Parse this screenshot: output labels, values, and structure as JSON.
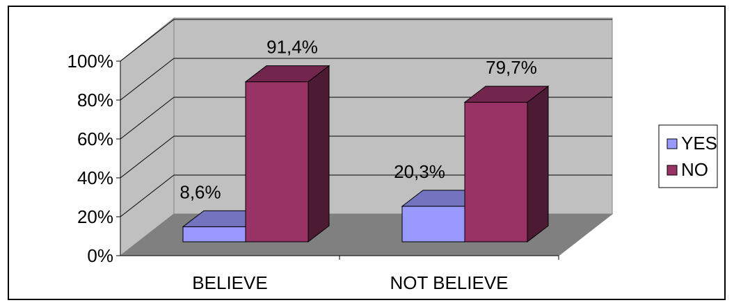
{
  "chart_data": {
    "type": "bar",
    "categories": [
      "BELIEVE",
      "NOT BELIEVE"
    ],
    "series": [
      {
        "name": "YES",
        "values": [
          8.6,
          20.3
        ],
        "labels": [
          "8,6%",
          "20,3%"
        ],
        "color": "#9999ff"
      },
      {
        "name": "NO",
        "values": [
          91.4,
          79.7
        ],
        "labels": [
          "91,4%",
          "79,7%"
        ],
        "color": "#993366"
      }
    ],
    "y_ticks": [
      "0%",
      "20%",
      "40%",
      "60%",
      "80%",
      "100%"
    ],
    "ylim": [
      0,
      100
    ],
    "grid": true,
    "legend_position": "right",
    "style": "3d-clustered-column",
    "wall_color": "#c0c0c0",
    "floor_color": "#808080"
  }
}
